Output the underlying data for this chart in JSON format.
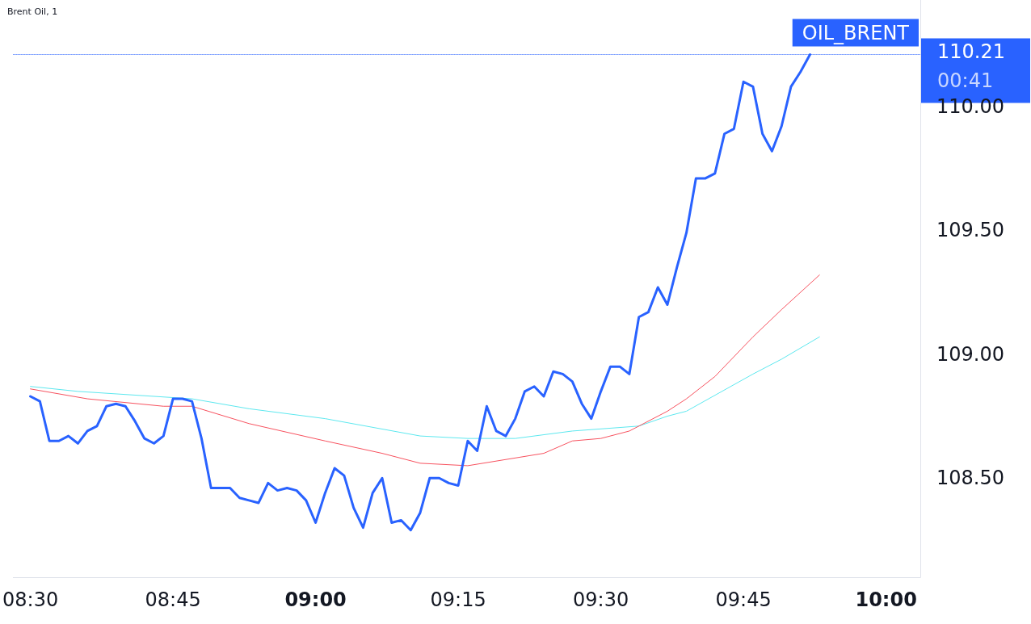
{
  "chart_data": {
    "type": "line",
    "title": "Brent Oil, 1",
    "xlim": [
      8.47,
      10.06
    ],
    "ylim": [
      108.1,
      110.43
    ],
    "xticks": [
      {
        "value": 8.5,
        "label": "08:30"
      },
      {
        "value": 8.75,
        "label": "08:45"
      },
      {
        "value": 9,
        "label": "09:00"
      },
      {
        "value": 9.25,
        "label": "09:15"
      },
      {
        "value": 9.5,
        "label": "09:30"
      },
      {
        "value": 9.75,
        "label": "09:45"
      },
      {
        "value": 10,
        "label": "10:00"
      }
    ],
    "yticks": [
      {
        "value": 108.5,
        "label": "108.50"
      },
      {
        "value": 109,
        "label": "109.00"
      },
      {
        "value": 109.5,
        "label": "109.50"
      },
      {
        "value": 110,
        "label": "110.00"
      }
    ],
    "marker": "none",
    "line_style": "solid",
    "series": [
      {
        "color": "#2962ff",
        "x": [
          8.5,
          8.5167,
          8.5333,
          8.55,
          8.5667,
          8.5833,
          8.6,
          8.6167,
          8.6333,
          8.65,
          8.6667,
          8.6833,
          8.7,
          8.7167,
          8.7333,
          8.75,
          8.7667,
          8.7833,
          8.8,
          8.8167,
          8.8333,
          8.85,
          8.8667,
          8.8833,
          8.9,
          8.9167,
          8.9333,
          8.95,
          8.9667,
          8.9833,
          9,
          9.0167,
          9.0333,
          9.05,
          9.0667,
          9.0833,
          9.1,
          9.1167,
          9.1333,
          9.15,
          9.1667,
          9.1833,
          9.2,
          9.2167,
          9.2333,
          9.25,
          9.2667,
          9.2833,
          9.3,
          9.3167,
          9.3333,
          9.35,
          9.3667,
          9.3833,
          9.4,
          9.4167,
          9.4333,
          9.45,
          9.4667,
          9.4833,
          9.5,
          9.5167,
          9.5333,
          9.55,
          9.5667,
          9.5833,
          9.6,
          9.6167,
          9.6333,
          9.65,
          9.6667,
          9.6833,
          9.7,
          9.7167,
          9.7333,
          9.75,
          9.7667,
          9.7833,
          9.8,
          9.8167,
          9.8333,
          9.85,
          9.8667
        ],
        "values": [
          108.83,
          108.81,
          108.65,
          108.65,
          108.67,
          108.64,
          108.69,
          108.71,
          108.79,
          108.8,
          108.79,
          108.73,
          108.66,
          108.64,
          108.67,
          108.82,
          108.82,
          108.81,
          108.66,
          108.46,
          108.46,
          108.46,
          108.42,
          108.41,
          108.4,
          108.48,
          108.45,
          108.46,
          108.45,
          108.41,
          108.32,
          108.44,
          108.54,
          108.51,
          108.38,
          108.3,
          108.44,
          108.5,
          108.32,
          108.33,
          108.29,
          108.36,
          108.5,
          108.5,
          108.48,
          108.47,
          108.65,
          108.61,
          108.79,
          108.69,
          108.67,
          108.74,
          108.85,
          108.87,
          108.83,
          108.93,
          108.92,
          108.89,
          108.8,
          108.74,
          108.85,
          108.95,
          108.95,
          108.92,
          109.15,
          109.17,
          109.27,
          109.2,
          109.35,
          109.49,
          109.71,
          109.71,
          109.73,
          109.89,
          109.91,
          110.1,
          110.08,
          109.89,
          109.82,
          109.92,
          110.08,
          110.14,
          110.21
        ]
      },
      {
        "color": "#f7525f",
        "x": [
          8.5,
          8.6,
          8.7333,
          8.7833,
          8.8833,
          9.0167,
          9.1167,
          9.1833,
          9.2667,
          9.4,
          9.45,
          9.5,
          9.55,
          9.6167,
          9.65,
          9.7,
          9.7667,
          9.8167,
          9.8833
        ],
        "values": [
          108.86,
          108.82,
          108.79,
          108.79,
          108.72,
          108.65,
          108.6,
          108.56,
          108.55,
          108.6,
          108.65,
          108.66,
          108.69,
          108.77,
          108.82,
          108.91,
          109.07,
          109.18,
          109.32
        ]
      },
      {
        "color": "#5de8ef",
        "x": [
          8.5,
          8.5833,
          8.7833,
          8.8833,
          9.0167,
          9.1833,
          9.2667,
          9.35,
          9.45,
          9.5667,
          9.6167,
          9.65,
          9.7667,
          9.8167,
          9.8833
        ],
        "values": [
          108.87,
          108.85,
          108.82,
          108.78,
          108.74,
          108.67,
          108.66,
          108.66,
          108.69,
          108.71,
          108.75,
          108.77,
          108.92,
          108.98,
          109.07
        ]
      }
    ],
    "ref_lines": [
      {
        "axis": "y",
        "value": 110.21,
        "label": "OIL_BRENT",
        "color": "#2962ff",
        "line_style": "dotted"
      }
    ],
    "annotations": [
      "110.21",
      "00:41"
    ]
  }
}
